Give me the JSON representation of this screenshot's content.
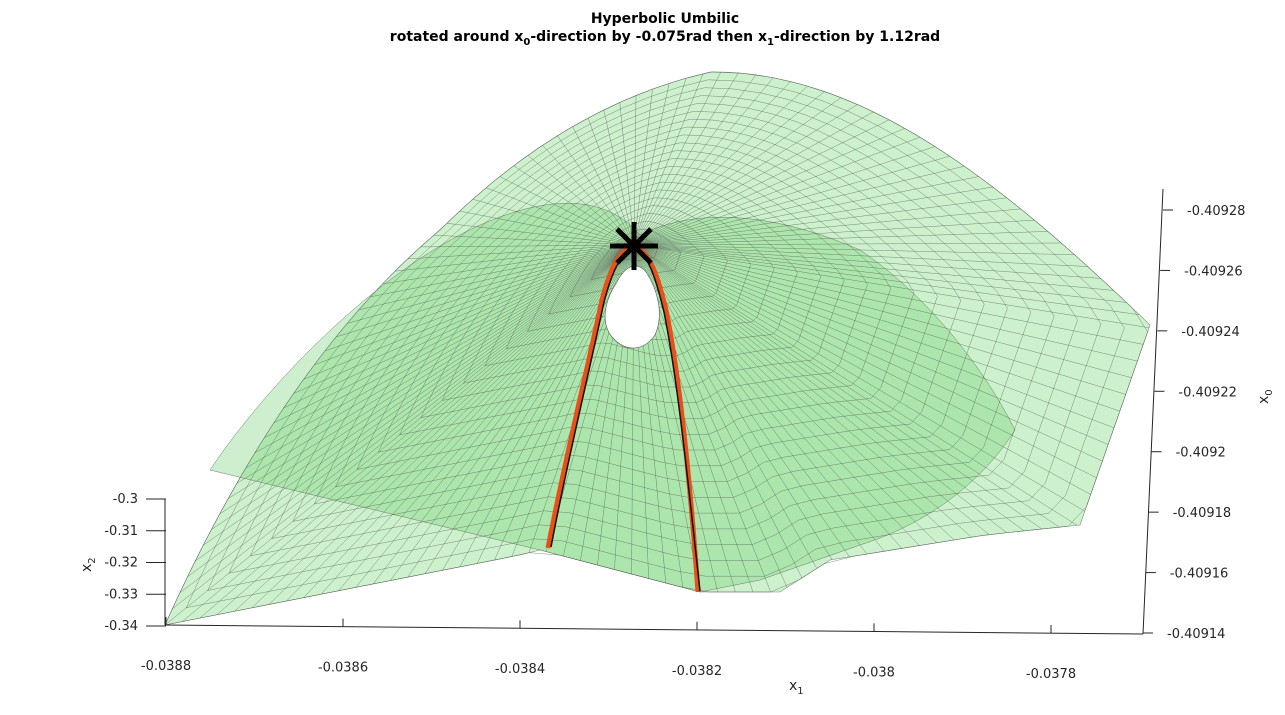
{
  "chart_data": {
    "type": "surface3d",
    "title": "Hyperbolic Umbilic",
    "subtitle": {
      "prefix": "rotated around x",
      "sub1": "0",
      "middle": "-direction by -0.075rad then x",
      "sub2": "1",
      "suffix": "-direction by 1.12rad"
    },
    "axes": {
      "x1": {
        "label_base": "x",
        "label_sub": "1",
        "ticks": [
          -0.0388,
          -0.0386,
          -0.0384,
          -0.0382,
          -0.038,
          -0.0378
        ],
        "tick_labels": [
          "-0.0388",
          "-0.0386",
          "-0.0384",
          "-0.0382",
          "-0.038",
          "-0.0378"
        ],
        "lim": [
          -0.0388,
          -0.0377
        ]
      },
      "x2": {
        "label_base": "x",
        "label_sub": "2",
        "ticks": [
          -0.3,
          -0.31,
          -0.32,
          -0.33,
          -0.34
        ],
        "tick_labels": [
          "-0.3",
          "-0.31",
          "-0.32",
          "-0.33",
          "-0.34"
        ],
        "lim": [
          -0.34,
          -0.3
        ]
      },
      "x0": {
        "label_base": "x",
        "label_sub": "0",
        "ticks": [
          -0.40928,
          -0.40926,
          -0.40924,
          -0.40922,
          -0.4092,
          -0.40918,
          -0.40916,
          -0.40914
        ],
        "tick_labels": [
          "-0.40928",
          "-0.40926",
          "-0.40924",
          "-0.40922",
          "-0.4092",
          "-0.40918",
          "-0.40916",
          "-0.40914"
        ],
        "lim": [
          -0.40928,
          -0.40914
        ]
      }
    },
    "series": [
      {
        "kind": "surface",
        "color": "#8fe08f",
        "edge_color": "#555555",
        "alpha": 0.4
      },
      {
        "kind": "curve",
        "color": "#e8501a"
      },
      {
        "kind": "curve",
        "color": "#000000"
      },
      {
        "kind": "marker",
        "symbol": "asterisk",
        "color": "#000000"
      }
    ],
    "grid": false
  }
}
